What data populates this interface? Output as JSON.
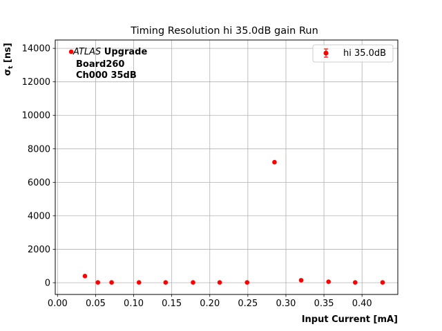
{
  "chart_data": {
    "type": "scatter",
    "title": "Timing Resolution hi 35.0dB gain Run",
    "xlabel": "Input Current [mA]",
    "ylabel_main": "σ",
    "ylabel_sub": "t",
    "ylabel_unit": " [ns]",
    "xlim": [
      -0.003,
      0.447
    ],
    "ylim": [
      -700,
      14500
    ],
    "xticks": [
      0.0,
      0.05,
      0.1,
      0.15,
      0.2,
      0.25,
      0.3,
      0.35,
      0.4
    ],
    "xtick_labels": [
      "0.00",
      "0.05",
      "0.10",
      "0.15",
      "0.20",
      "0.25",
      "0.30",
      "0.35",
      "0.40"
    ],
    "yticks": [
      0,
      2000,
      4000,
      6000,
      8000,
      10000,
      12000,
      14000
    ],
    "ytick_labels": [
      "0",
      "2000",
      "4000",
      "6000",
      "8000",
      "10000",
      "12000",
      "14000"
    ],
    "grid": true,
    "legend_position": "top-right",
    "series": [
      {
        "name": "hi 35.0dB",
        "color": "#ff0000",
        "x": [
          0.018,
          0.036,
          0.053,
          0.071,
          0.107,
          0.142,
          0.178,
          0.213,
          0.249,
          0.285,
          0.32,
          0.356,
          0.391,
          0.427
        ],
        "y": [
          13800,
          400,
          20,
          20,
          20,
          20,
          20,
          20,
          20,
          7200,
          150,
          60,
          20,
          20
        ]
      }
    ],
    "annotation": {
      "line1_italic": "ATLAS",
      "line1_bold": " Upgrade",
      "line2": "Board260",
      "line3": "Ch000 35dB"
    }
  }
}
